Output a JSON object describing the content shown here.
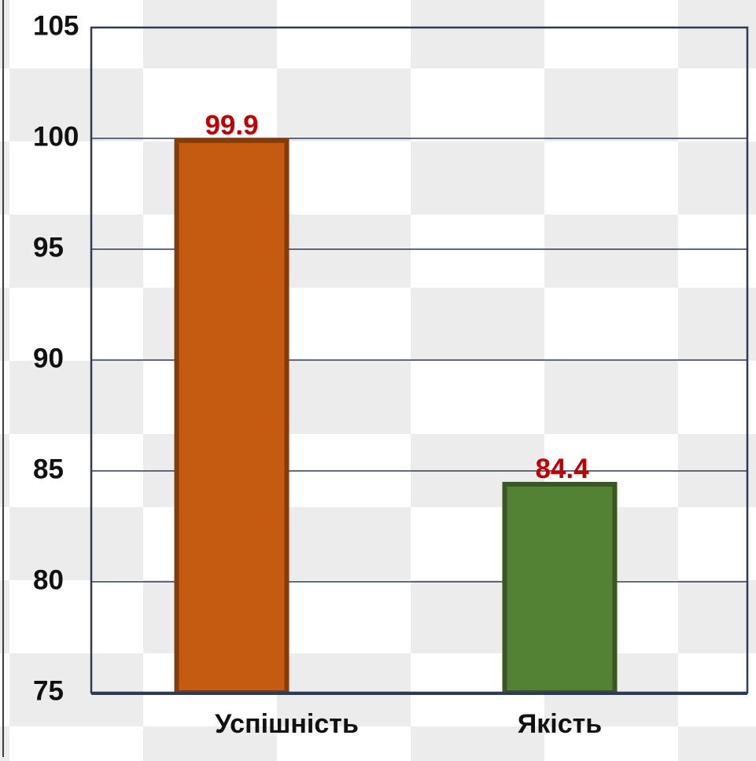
{
  "chart_data": {
    "type": "bar",
    "title": "",
    "xlabel": "",
    "ylabel": "",
    "categories": [
      "Успішність",
      "Якість"
    ],
    "values": [
      99.9,
      84.4
    ],
    "data_labels": [
      "99.9",
      "84.4"
    ],
    "bar_colors": [
      "#c55a11",
      "#548235"
    ],
    "bar_border_colors": [
      "#843c0c",
      "#385723"
    ],
    "label_color": "#c00000",
    "ylim": [
      75,
      105
    ],
    "yticks": [
      75,
      80,
      85,
      90,
      95,
      100,
      105
    ],
    "ytick_labels": [
      "75",
      "80",
      "85",
      "90",
      "95",
      "100",
      "105"
    ],
    "grid": true,
    "legend": "none"
  }
}
